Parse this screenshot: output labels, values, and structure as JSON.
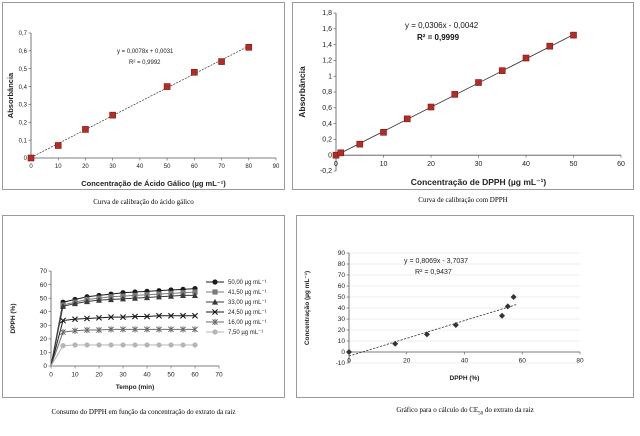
{
  "captions": {
    "c1": "Curva de calibração do ácido gálico",
    "c2": "Curva de calibração com DPPH",
    "c3": "Consumo do DPPH em função da concentração do extrato da raiz",
    "c4_pre": "Gráfico para o cálculo do CE",
    "c4_sub": "50",
    "c4_post": " do extrato da raiz"
  },
  "chart_data": [
    {
      "type": "scatter",
      "title": "",
      "xlabel": "Concentração de Ácido Gálico (µg mL⁻¹)",
      "ylabel": "Absorbância",
      "xlim": [
        0,
        90
      ],
      "ylim": [
        0,
        0.7
      ],
      "xticks": [
        0,
        10,
        20,
        30,
        40,
        50,
        60,
        70,
        80,
        90
      ],
      "yticks": [
        0,
        0.1,
        0.2,
        0.3,
        0.4,
        0.5,
        0.6,
        0.7
      ],
      "ytick_labels": [
        "0",
        "0,1",
        "0,2",
        "0,3",
        "0,4",
        "0,5",
        "0,6",
        "0,7"
      ],
      "marker_color": "#b52b25",
      "x": [
        0,
        10,
        20,
        30,
        50,
        60,
        70,
        80
      ],
      "y": [
        0.0,
        0.07,
        0.16,
        0.24,
        0.4,
        0.48,
        0.54,
        0.62
      ],
      "trendline": {
        "slope": 0.0078,
        "intercept": 0.0031
      },
      "equation": "y = 0,0078x + 0,0031",
      "r2": "R² = 0,9992"
    },
    {
      "type": "scatter",
      "title": "",
      "xlabel": "Concentração de DPPH (µg mL⁻¹)",
      "ylabel": "Absorbância",
      "xlim": [
        0,
        60
      ],
      "ylim": [
        -0.2,
        1.8
      ],
      "xticks": [
        0,
        10,
        20,
        30,
        40,
        50,
        60
      ],
      "yticks": [
        -0.2,
        0,
        0.2,
        0.4,
        0.6,
        0.8,
        1,
        1.2,
        1.4,
        1.6,
        1.8
      ],
      "ytick_labels": [
        "-0,2",
        "0",
        "0,2",
        "0,4",
        "0,6",
        "0,8",
        "1",
        "1,2",
        "1,4",
        "1,6",
        "1,8"
      ],
      "marker_color": "#b52b25",
      "x": [
        0,
        1,
        5,
        10,
        15,
        20,
        25,
        30,
        35,
        40,
        45,
        50
      ],
      "y": [
        0.0,
        0.03,
        0.14,
        0.29,
        0.46,
        0.61,
        0.77,
        0.92,
        1.07,
        1.23,
        1.38,
        1.52
      ],
      "trendline": {
        "slope": 0.0306,
        "intercept": -0.0042
      },
      "equation": "y = 0,0306x - 0,0042",
      "r2": "R² = 0,9999"
    },
    {
      "type": "line",
      "title": "",
      "xlabel": "Tempo (min)",
      "ylabel": "DPPH (%)",
      "xlim": [
        0,
        70
      ],
      "ylim": [
        0,
        70
      ],
      "xticks": [
        0,
        10,
        20,
        30,
        40,
        50,
        60,
        70
      ],
      "yticks": [
        0,
        10,
        20,
        30,
        40,
        50,
        60,
        70
      ],
      "legend_position": "right",
      "x": [
        0,
        5,
        10,
        15,
        20,
        25,
        30,
        35,
        40,
        45,
        50,
        55,
        60
      ],
      "series": [
        {
          "name": "50,00 µg mL⁻¹",
          "marker": "circle",
          "color": "#1a1a1a",
          "values": [
            0,
            47,
            49,
            51,
            52,
            53,
            54,
            54.5,
            55,
            55.5,
            56,
            56.5,
            57
          ]
        },
        {
          "name": "41,50 µg mL⁻¹",
          "marker": "square",
          "color": "#7a7a7a",
          "values": [
            0,
            45,
            47,
            49,
            50,
            51,
            51.5,
            52,
            52.5,
            53,
            53.5,
            54,
            54.5
          ]
        },
        {
          "name": "33,00 µg mL⁻¹",
          "marker": "triangle",
          "color": "#3a3a3a",
          "values": [
            0,
            44,
            46,
            47.5,
            48.5,
            49,
            49.5,
            50,
            50.5,
            51,
            51.5,
            52,
            52
          ]
        },
        {
          "name": "24,50 µg mL⁻¹",
          "marker": "x",
          "color": "#1a1a1a",
          "values": [
            0,
            33.5,
            34.5,
            35,
            35.5,
            36,
            36,
            36.5,
            36.5,
            37,
            37,
            37,
            37
          ]
        },
        {
          "name": "16,00 µg mL⁻¹",
          "marker": "star",
          "color": "#6a6a6a",
          "values": [
            0,
            25,
            26,
            26.5,
            26.5,
            27,
            27,
            27,
            27,
            27,
            27,
            27,
            27
          ]
        },
        {
          "name": "7,50 µg mL⁻¹",
          "marker": "circle",
          "color": "#b5b5b5",
          "values": [
            0,
            15,
            15.5,
            15.5,
            15.5,
            15.5,
            15.5,
            15.5,
            15.5,
            15.5,
            15.5,
            15.5,
            15.5
          ]
        }
      ]
    },
    {
      "type": "scatter",
      "title": "",
      "xlabel": "DPPH (%)",
      "ylabel": "Concentração (µg mL⁻¹)",
      "xlim": [
        0,
        80
      ],
      "ylim": [
        -10,
        90
      ],
      "xticks": [
        0,
        20,
        40,
        60,
        80
      ],
      "yticks": [
        -10,
        0,
        10,
        20,
        30,
        40,
        50,
        60,
        70,
        80,
        90
      ],
      "marker_color": "#333333",
      "x": [
        0,
        16,
        27,
        37,
        53,
        55,
        57
      ],
      "y": [
        0,
        7.5,
        16,
        24.5,
        33,
        41.5,
        50
      ],
      "trendline": {
        "slope": 0.8069,
        "intercept": -3.7037
      },
      "equation": "y = 0,8069x - 3,7037",
      "r2": "R² = 0,9437"
    }
  ]
}
